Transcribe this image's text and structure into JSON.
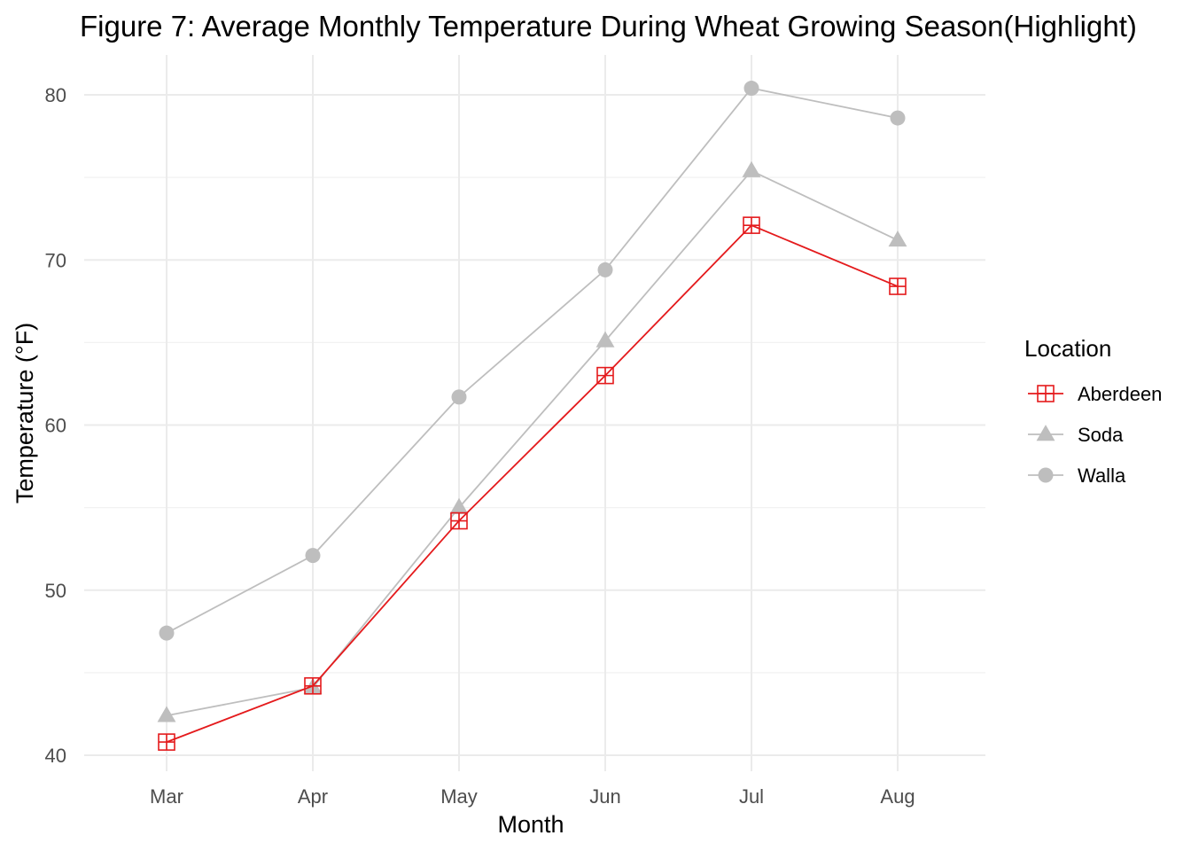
{
  "chart_data": {
    "type": "line",
    "title": "Figure 7: Average Monthly Temperature During Wheat Growing Season(Highlight)",
    "xlabel": "Month",
    "ylabel": "Temperature (°F)",
    "categories": [
      "Mar",
      "Apr",
      "May",
      "Jun",
      "Jul",
      "Aug"
    ],
    "ylim": [
      38.3,
      82.2
    ],
    "yticks": [
      40,
      50,
      60,
      70,
      80
    ],
    "grid": true,
    "legend": {
      "title": "Location",
      "position": "right"
    },
    "series": [
      {
        "name": "Aberdeen",
        "marker": "square-cross",
        "color": "#e41a1c",
        "values": [
          40.8,
          44.2,
          54.2,
          63.0,
          72.1,
          68.4
        ]
      },
      {
        "name": "Soda",
        "marker": "triangle",
        "color": "#bebebe",
        "values": [
          42.4,
          44.1,
          55.0,
          65.1,
          75.4,
          71.2
        ]
      },
      {
        "name": "Walla",
        "marker": "circle",
        "color": "#bebebe",
        "values": [
          47.4,
          52.1,
          61.7,
          69.4,
          80.4,
          78.6
        ]
      }
    ]
  }
}
